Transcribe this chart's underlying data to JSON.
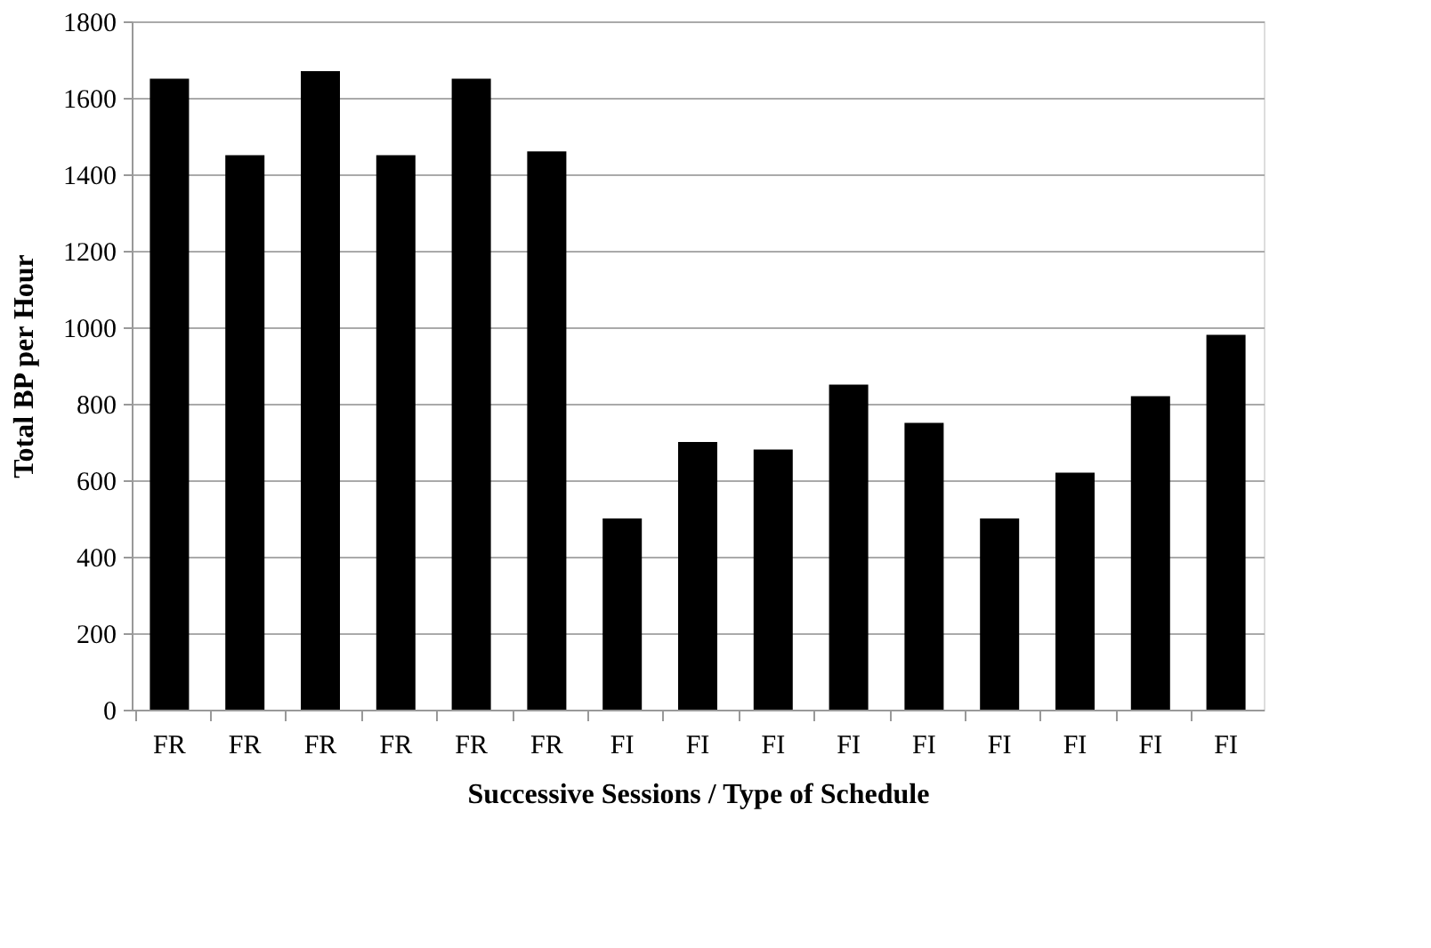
{
  "chart_data": {
    "type": "bar",
    "xlabel": "Successive Sessions / Type of Schedule",
    "ylabel": "Total BP per Hour",
    "categories": [
      "FR",
      "FR",
      "FR",
      "FR",
      "FR",
      "FR",
      "FI",
      "FI",
      "FI",
      "FI",
      "FI",
      "FI",
      "FI",
      "FI",
      "FI"
    ],
    "values": [
      1650,
      1450,
      1670,
      1450,
      1650,
      1460,
      500,
      700,
      680,
      850,
      750,
      500,
      620,
      820,
      980
    ],
    "color": "#000000",
    "ylim": [
      0,
      1800
    ],
    "yticks": [
      0,
      200,
      400,
      600,
      800,
      1000,
      1200,
      1400,
      1600,
      1800
    ],
    "grid": "y"
  }
}
